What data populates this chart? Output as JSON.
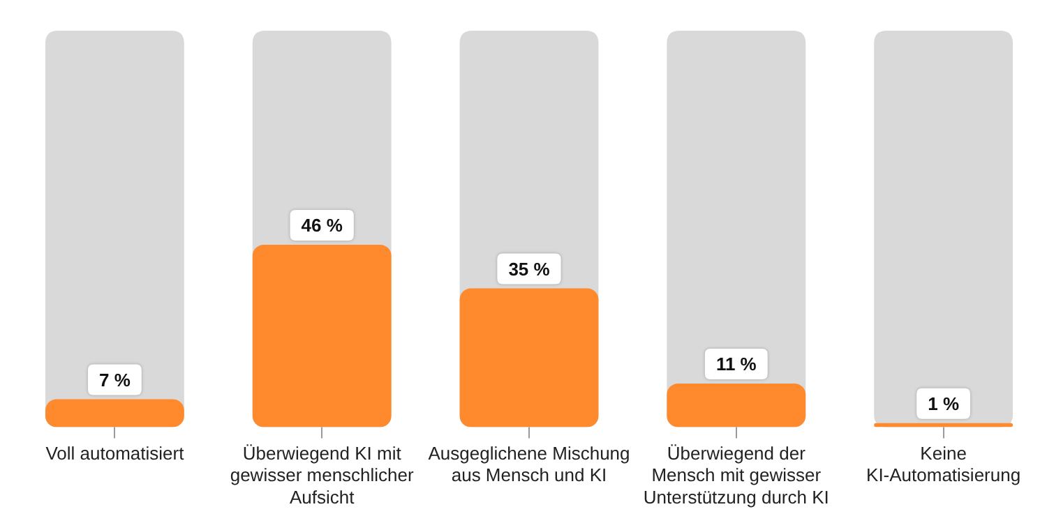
{
  "chart_data": {
    "type": "bar",
    "categories": [
      "Voll automatisiert",
      "Überwiegend KI mit gewisser menschlicher Aufsicht",
      "Ausgeglichene Mischung aus Mensch und KI",
      "Überwiegend der Mensch mit gewisser Unterstützung durch KI",
      "Keine KI-Automatisierung"
    ],
    "values": [
      7,
      46,
      35,
      11,
      1
    ],
    "value_labels": [
      "7 %",
      "46 %",
      "35 %",
      "11 %",
      "1 %"
    ],
    "color": "#ff8a2e",
    "ylim": [
      0,
      100
    ],
    "tick_labels": "x"
  }
}
